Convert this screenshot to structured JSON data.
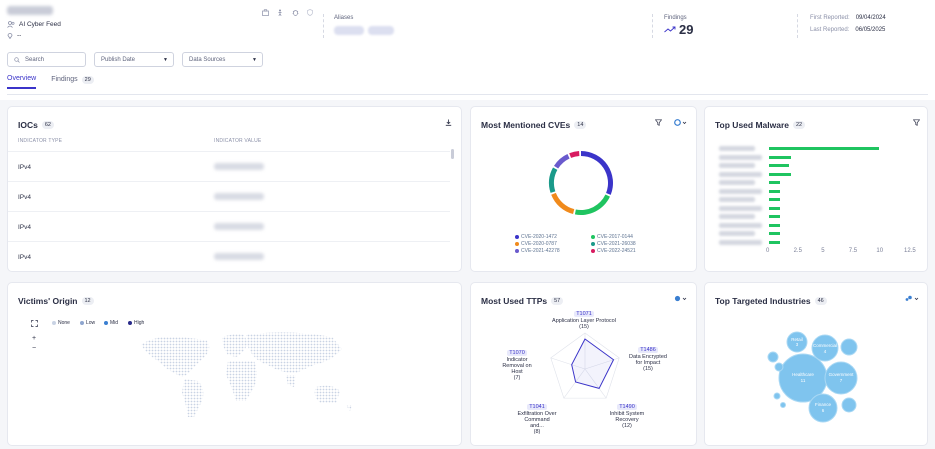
{
  "header": {
    "feed_label": "AI Cyber Feed",
    "location_value": "--",
    "aliases_label": "Aliases",
    "findings_label": "Findings",
    "findings_count": "29",
    "first_reported_label": "First Reported:",
    "first_reported_value": "09/04/2024",
    "last_reported_label": "Last Reported:",
    "last_reported_value": "06/05/2025"
  },
  "filters": {
    "search_placeholder": "Search",
    "publish_date": "Publish Date",
    "data_sources": "Data Sources"
  },
  "tabs": [
    {
      "label": "Overview"
    },
    {
      "label": "Findings",
      "count": "29"
    }
  ],
  "iocs": {
    "title": "IOCs",
    "count": "62",
    "col_type": "INDICATOR TYPE",
    "col_value": "INDICATOR VALUE",
    "rows": [
      {
        "type": "IPv4"
      },
      {
        "type": "IPv4"
      },
      {
        "type": "IPv4"
      },
      {
        "type": "IPv4"
      }
    ]
  },
  "cves": {
    "title": "Most Mentioned CVEs",
    "count": "14",
    "legend": [
      {
        "label": "CVE-2020-1472",
        "color": "#3b34c9"
      },
      {
        "label": "CVE-2017-0144",
        "color": "#1fc460"
      },
      {
        "label": "CVE-2020-0787",
        "color": "#f08a1c"
      },
      {
        "label": "CVE-2021-26038",
        "color": "#1a9a8a"
      },
      {
        "label": "CVE-2021-42278",
        "color": "#6a5acd"
      },
      {
        "label": "CVE-2022-24521",
        "color": "#d81b60"
      }
    ]
  },
  "malware": {
    "title": "Top Used Malware",
    "count": "22"
  },
  "victims": {
    "title": "Victims' Origin",
    "count": "12",
    "legend": [
      {
        "label": "None",
        "color": "#c9d3e4"
      },
      {
        "label": "Low",
        "color": "#8fa6cf"
      },
      {
        "label": "Mid",
        "color": "#3a7fd1"
      },
      {
        "label": "High",
        "color": "#2a2b8a"
      }
    ],
    "zoom_in": "+",
    "zoom_out": "−"
  },
  "ttps": {
    "title": "Most Used TTPs",
    "count": "57",
    "items": [
      {
        "id": "T1071",
        "name": "Application Layer Protocol",
        "count": "(15)"
      },
      {
        "id": "T1486",
        "name": "Data Encrypted for Impact",
        "count": "(15)"
      },
      {
        "id": "T1490",
        "name": "Inhibit System Recovery",
        "count": "(12)"
      },
      {
        "id": "T1041",
        "name": "Exfiltration Over Command and...",
        "count": "(8)"
      },
      {
        "id": "T1070",
        "name": "Indicator Removal on Host",
        "count": "(7)"
      }
    ]
  },
  "industries": {
    "title": "Top Targeted Industries",
    "count": "46",
    "bubbles": [
      {
        "name": "Healthcare",
        "value": "11"
      },
      {
        "name": "Government",
        "value": "7"
      },
      {
        "name": "Finance",
        "value": "6"
      },
      {
        "name": "Commercial",
        "value": "4"
      },
      {
        "name": "Retail",
        "value": "3"
      }
    ]
  },
  "chart_data": [
    {
      "type": "pie",
      "title": "Most Mentioned CVEs",
      "categories": [
        "CVE-2020-1472",
        "CVE-2017-0144",
        "CVE-2020-0787",
        "CVE-2021-26038",
        "CVE-2021-42278",
        "CVE-2022-24521"
      ],
      "values": [
        32,
        22,
        16,
        14,
        10,
        6
      ],
      "colors": [
        "#3b34c9",
        "#1fc460",
        "#f08a1c",
        "#1a9a8a",
        "#6a5acd",
        "#d81b60"
      ]
    },
    {
      "type": "bar",
      "orientation": "horizontal",
      "title": "Top Used Malware",
      "values": [
        10,
        2,
        1.8,
        2,
        1,
        1,
        1,
        1,
        1,
        1,
        1,
        1
      ],
      "xlim": [
        0,
        12.5
      ],
      "xticks": [
        "0",
        "2.5",
        "5",
        "7.5",
        "10",
        "12.5"
      ],
      "color": "#1fc460"
    },
    {
      "type": "radar",
      "title": "Most Used TTPs",
      "categories": [
        "T1071",
        "T1486",
        "T1490",
        "T1041",
        "T1070"
      ],
      "values": [
        15,
        15,
        12,
        8,
        7
      ],
      "max": 18
    }
  ]
}
